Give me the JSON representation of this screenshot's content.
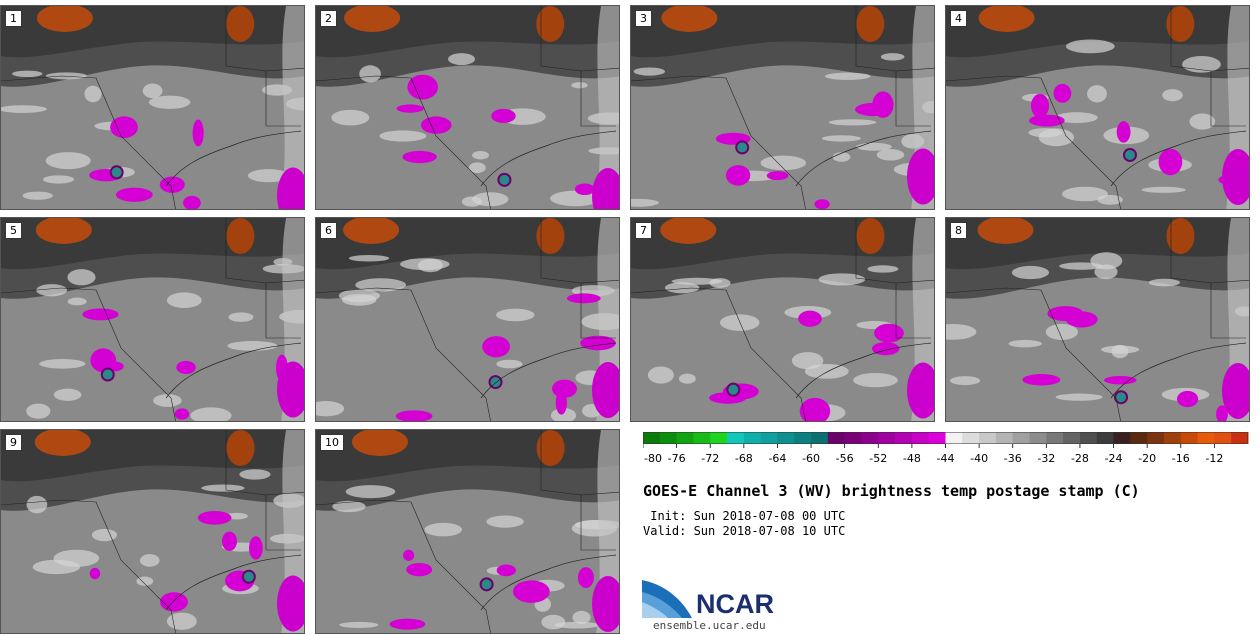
{
  "panels": [
    {
      "label": "1"
    },
    {
      "label": "2"
    },
    {
      "label": "3"
    },
    {
      "label": "4"
    },
    {
      "label": "5"
    },
    {
      "label": "6"
    },
    {
      "label": "7"
    },
    {
      "label": "8"
    },
    {
      "label": "9"
    },
    {
      "label": "10"
    }
  ],
  "colorbar": {
    "units": "C",
    "colors": [
      "#0a7a0a",
      "#0b8e0b",
      "#10a410",
      "#17bb17",
      "#1fd41f",
      "#10c8b8",
      "#10b0aa",
      "#10a0a0",
      "#0f9090",
      "#0c8080",
      "#0a7070",
      "#6a006a",
      "#7a007a",
      "#8c008c",
      "#a000a0",
      "#b400b4",
      "#c800c8",
      "#dc00dc",
      "#f2f2f2",
      "#dcdcdc",
      "#c8c8c8",
      "#b4b4b4",
      "#a0a0a0",
      "#8c8c8c",
      "#787878",
      "#646464",
      "#505050",
      "#3c3c3c",
      "#3a2020",
      "#5a2a10",
      "#7a3410",
      "#a0400a",
      "#c84a08",
      "#e85a08",
      "#e05010",
      "#c83010"
    ],
    "ticks": [
      "-80",
      "-76",
      "-72",
      "-68",
      "-64",
      "-60",
      "-56",
      "-52",
      "-48",
      "-44",
      "-40",
      "-36",
      "-32",
      "-28",
      "-24",
      "-20",
      "-16",
      "-12"
    ]
  },
  "title": "GOES-E Channel 3 (WV) brightness temp postage stamp (C)",
  "init_line": " Init: Sun 2018-07-08 00 UTC",
  "valid_line": "Valid: Sun 2018-07-08 10 UTC",
  "logo_text": "NCAR",
  "url": "ensemble.ucar.edu"
}
